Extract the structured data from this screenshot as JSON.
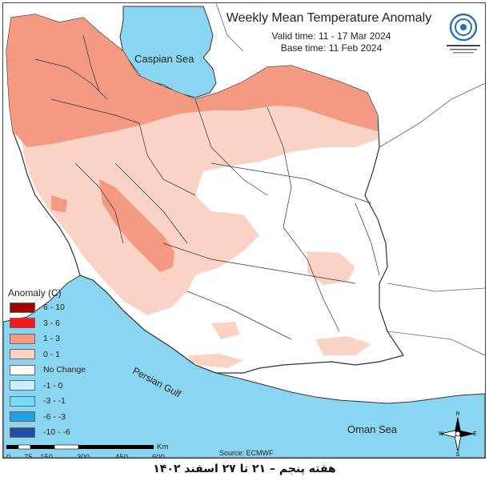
{
  "title": "Weekly Mean Temperature Anomaly",
  "valid_time": "Valid time: 11 - 17 Mar 2024",
  "base_time": "Base time: 11 Feb 2024",
  "legend": {
    "title": "Anomaly (C)",
    "items": [
      {
        "label": "6 - 10",
        "color": "#a30000"
      },
      {
        "label": "3 - 6",
        "color": "#f21b1b"
      },
      {
        "label": "1 - 3",
        "color": "#f59a82"
      },
      {
        "label": "0 - 1",
        "color": "#fbd3c6"
      },
      {
        "label": "No Change",
        "color": "#ffffff"
      },
      {
        "label": "-1 - 0",
        "color": "#cdeefa"
      },
      {
        "label": "-3 - -1",
        "color": "#7fd7f5"
      },
      {
        "label": "-6 - -3",
        "color": "#1aa3e8"
      },
      {
        "label": "-10 - -6",
        "color": "#1d4fb0"
      }
    ]
  },
  "water_labels": {
    "caspian": "Caspian Sea",
    "persian_gulf": "Persian Gulf",
    "oman": "Oman Sea"
  },
  "source": "Source: ECMWF",
  "scale": {
    "ticks": [
      "0",
      "75",
      "150",
      "300",
      "450",
      "600"
    ],
    "unit": "Km"
  },
  "compass": {
    "n": "N",
    "s": "S",
    "e": "E",
    "w": "W"
  },
  "footer": "هفته پنجم – ۲۱ تا ۲۷ اسفند ۱۴۰۲",
  "colors": {
    "sea": "#8ad6f2",
    "border": "#333333",
    "land": "#ffffff"
  }
}
